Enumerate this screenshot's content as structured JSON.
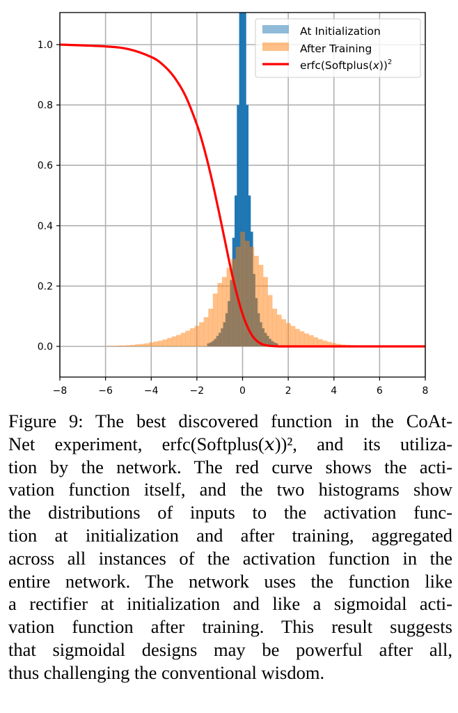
{
  "chart_data": {
    "type": "histogram+line",
    "title": "",
    "xlabel": "",
    "ylabel": "",
    "xlim": [
      -8,
      8
    ],
    "ylim": [
      -0.1,
      1.1
    ],
    "grid": true,
    "xticks": [
      "−8",
      "−6",
      "−4",
      "−2",
      "0",
      "2",
      "4",
      "6",
      "8"
    ],
    "xtick_values": [
      -8,
      -6,
      -4,
      -2,
      0,
      2,
      4,
      6,
      8
    ],
    "yticks": [
      "0.0",
      "0.2",
      "0.4",
      "0.6",
      "0.8",
      "1.0"
    ],
    "ytick_values": [
      0,
      0.2,
      0.4,
      0.6,
      0.8,
      1.0
    ],
    "legend_placement": "top-right",
    "colors": {
      "init": "#1f77b4",
      "trained": "#ff7f0e",
      "curve": "#ff0000",
      "grid": "#b0b0b0"
    },
    "series": [
      {
        "name": "At Initialization",
        "kind": "histogram",
        "bin_width": 0.1,
        "bin_centers": [
          -1.5,
          -1.4,
          -1.3,
          -1.2,
          -1.1,
          -1.0,
          -0.9,
          -0.8,
          -0.7,
          -0.6,
          -0.5,
          -0.4,
          -0.3,
          -0.2,
          -0.1,
          0,
          0.1,
          0.2,
          0.3,
          0.4,
          0.5,
          0.6,
          0.7,
          0.8,
          0.9,
          1.0,
          1.1,
          1.2,
          1.3,
          1.4,
          1.5
        ],
        "density": [
          0.01,
          0.013,
          0.018,
          0.025,
          0.035,
          0.045,
          0.06,
          0.08,
          0.11,
          0.15,
          0.22,
          0.36,
          0.5,
          0.8,
          1.3,
          2.0,
          1.3,
          0.8,
          0.5,
          0.38,
          0.24,
          0.16,
          0.11,
          0.08,
          0.06,
          0.045,
          0.035,
          0.025,
          0.018,
          0.013,
          0.01
        ]
      },
      {
        "name": "After Training",
        "kind": "histogram",
        "bin_width": 0.2,
        "bin_centers": [
          -6.0,
          -5.8,
          -5.6,
          -5.4,
          -5.2,
          -5.0,
          -4.8,
          -4.6,
          -4.4,
          -4.2,
          -4.0,
          -3.8,
          -3.6,
          -3.4,
          -3.2,
          -3.0,
          -2.8,
          -2.6,
          -2.4,
          -2.2,
          -2.0,
          -1.8,
          -1.6,
          -1.4,
          -1.2,
          -1.0,
          -0.8,
          -0.6,
          -0.4,
          -0.2,
          0,
          0.2,
          0.4,
          0.6,
          0.8,
          1.0,
          1.2,
          1.4,
          1.6,
          1.8,
          2.0,
          2.2,
          2.4,
          2.6,
          2.8,
          3.0,
          3.2,
          3.4,
          3.6,
          3.8,
          4.0,
          4.2,
          4.4,
          4.6,
          4.8,
          5.0,
          5.2,
          5.4,
          5.6,
          5.8,
          6.0
        ],
        "density": [
          0.001,
          0.002,
          0.002,
          0.003,
          0.003,
          0.004,
          0.005,
          0.007,
          0.008,
          0.01,
          0.013,
          0.016,
          0.019,
          0.023,
          0.028,
          0.033,
          0.038,
          0.045,
          0.052,
          0.06,
          0.068,
          0.08,
          0.097,
          0.125,
          0.175,
          0.21,
          0.23,
          0.26,
          0.29,
          0.33,
          0.38,
          0.35,
          0.33,
          0.3,
          0.27,
          0.23,
          0.17,
          0.125,
          0.105,
          0.09,
          0.077,
          0.068,
          0.058,
          0.05,
          0.043,
          0.037,
          0.03,
          0.024,
          0.019,
          0.015,
          0.011,
          0.008,
          0.006,
          0.005,
          0.004,
          0.003,
          0.002,
          0.002,
          0.001,
          0.001,
          0.001
        ]
      },
      {
        "name": "erfc(Softplus(x))²",
        "kind": "line",
        "x": [
          -8,
          -6,
          -5,
          -4,
          -3.5,
          -3,
          -2.5,
          -2,
          -1.75,
          -1.5,
          -1.25,
          -1,
          -0.75,
          -0.5,
          -0.25,
          0,
          0.25,
          0.5,
          0.75,
          1,
          1.5,
          2,
          4,
          6,
          8
        ],
        "y": [
          1.0,
          0.994,
          0.985,
          0.959,
          0.934,
          0.893,
          0.83,
          0.735,
          0.674,
          0.602,
          0.521,
          0.433,
          0.342,
          0.252,
          0.173,
          0.107,
          0.059,
          0.0276,
          0.0113,
          0.0039,
          0.0003,
          0,
          0,
          0,
          0
        ]
      }
    ],
    "legend": {
      "items": [
        "At Initialization",
        "After Training"
      ],
      "curve_label_main": "erfc(Softplus(",
      "curve_label_var": "x",
      "curve_label_close": "))",
      "curve_label_sup": "2"
    }
  },
  "caption": {
    "lines": [
      "Figure 9: The best discovered function in the CoAt-",
      "Net experiment, erfc(Softplus(𝑥))², and its utiliza-",
      "tion by the network. The red curve shows the acti-",
      "vation function itself, and the two histograms show",
      "the distributions of inputs to the activation func-",
      "tion at initialization and after training, aggregated",
      "across all instances of the activation function in the",
      "entire network. The network uses the function like",
      "a rectifier at initialization and like a sigmoidal acti-",
      "vation function after training. This result suggests",
      "that sigmoidal designs may be powerful after all,",
      "thus challenging the conventional wisdom."
    ]
  }
}
